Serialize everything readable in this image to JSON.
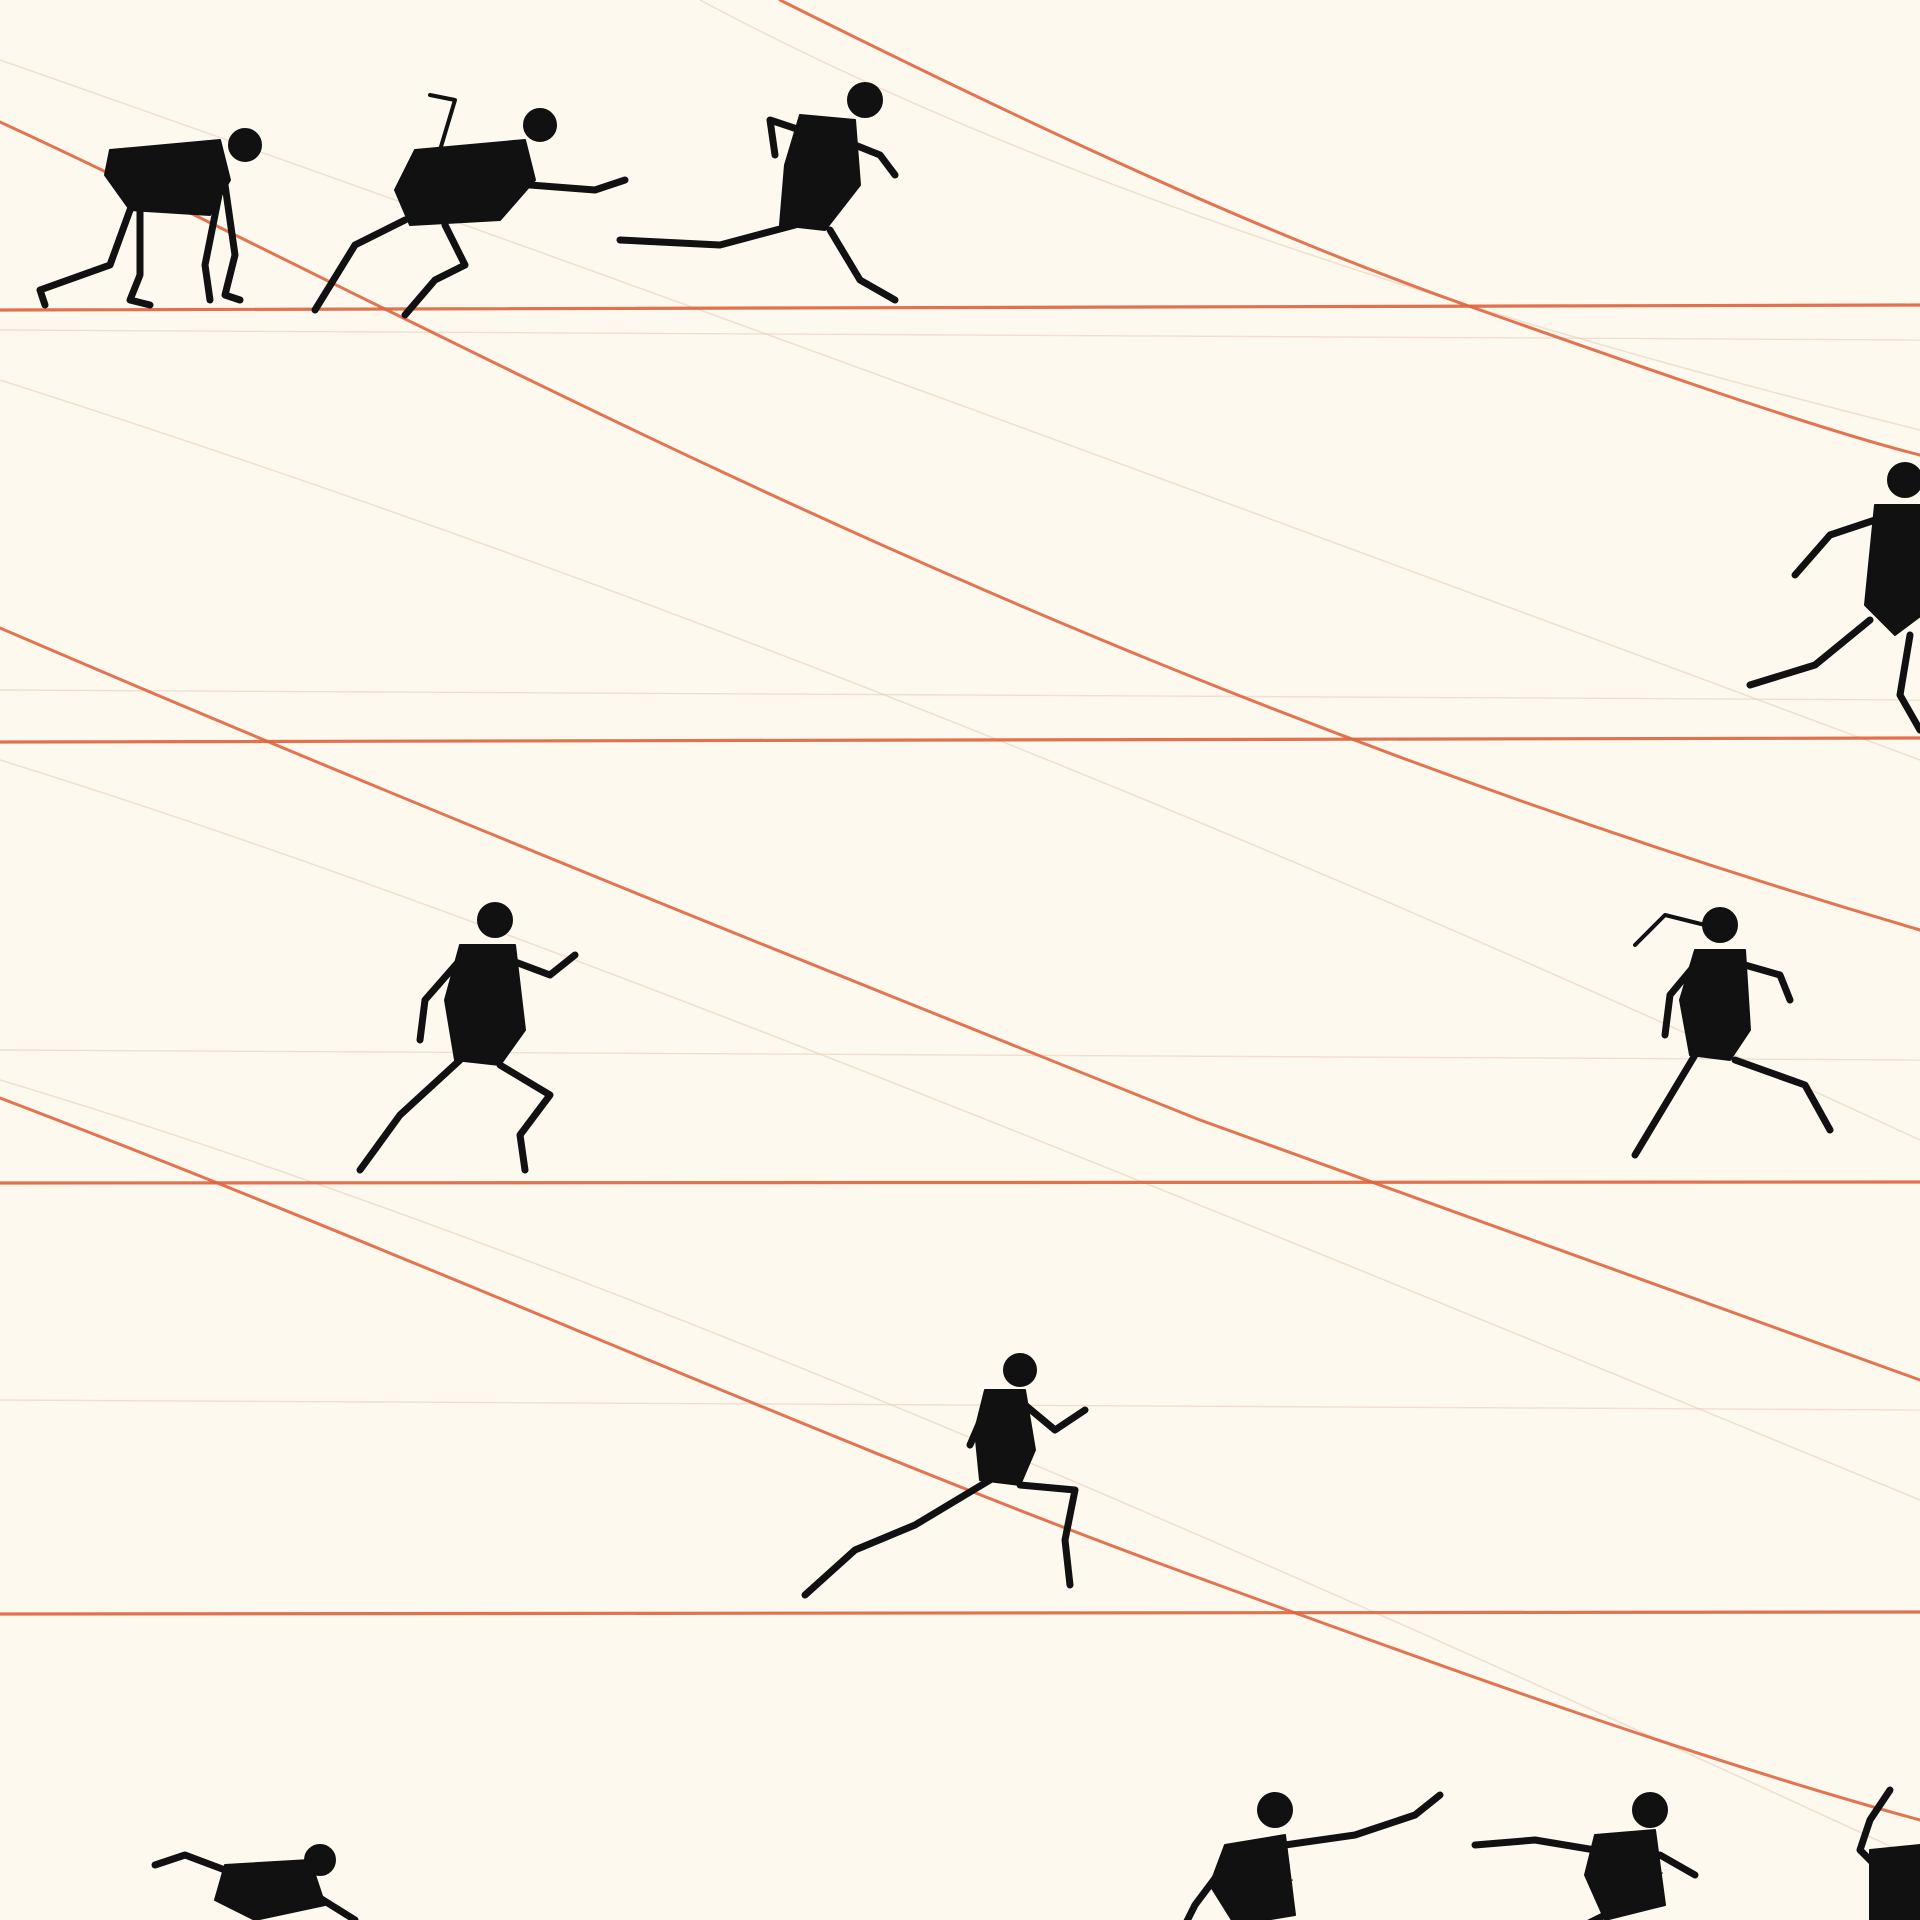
{
  "illustration": {
    "style": "pencil sketch of sprinters on a running track",
    "background_color": "#fdf9ef",
    "line_color": "#e0653f",
    "ink_color": "#111111",
    "lanes": 5,
    "figures": [
      {
        "id": "runner-1",
        "pose": "crouch-start"
      },
      {
        "id": "runner-2",
        "pose": "drive-phase"
      },
      {
        "id": "runner-3",
        "pose": "stride"
      },
      {
        "id": "runner-4",
        "pose": "stride-partial"
      },
      {
        "id": "runner-5",
        "pose": "sprint"
      },
      {
        "id": "runner-6",
        "pose": "sprint-ponytail"
      },
      {
        "id": "runner-7",
        "pose": "lunge-stride"
      },
      {
        "id": "runner-8",
        "pose": "crouch-low"
      },
      {
        "id": "runner-9",
        "pose": "reach-baton"
      },
      {
        "id": "runner-10",
        "pose": "reach"
      },
      {
        "id": "runner-11",
        "pose": "partial-edge"
      }
    ]
  }
}
